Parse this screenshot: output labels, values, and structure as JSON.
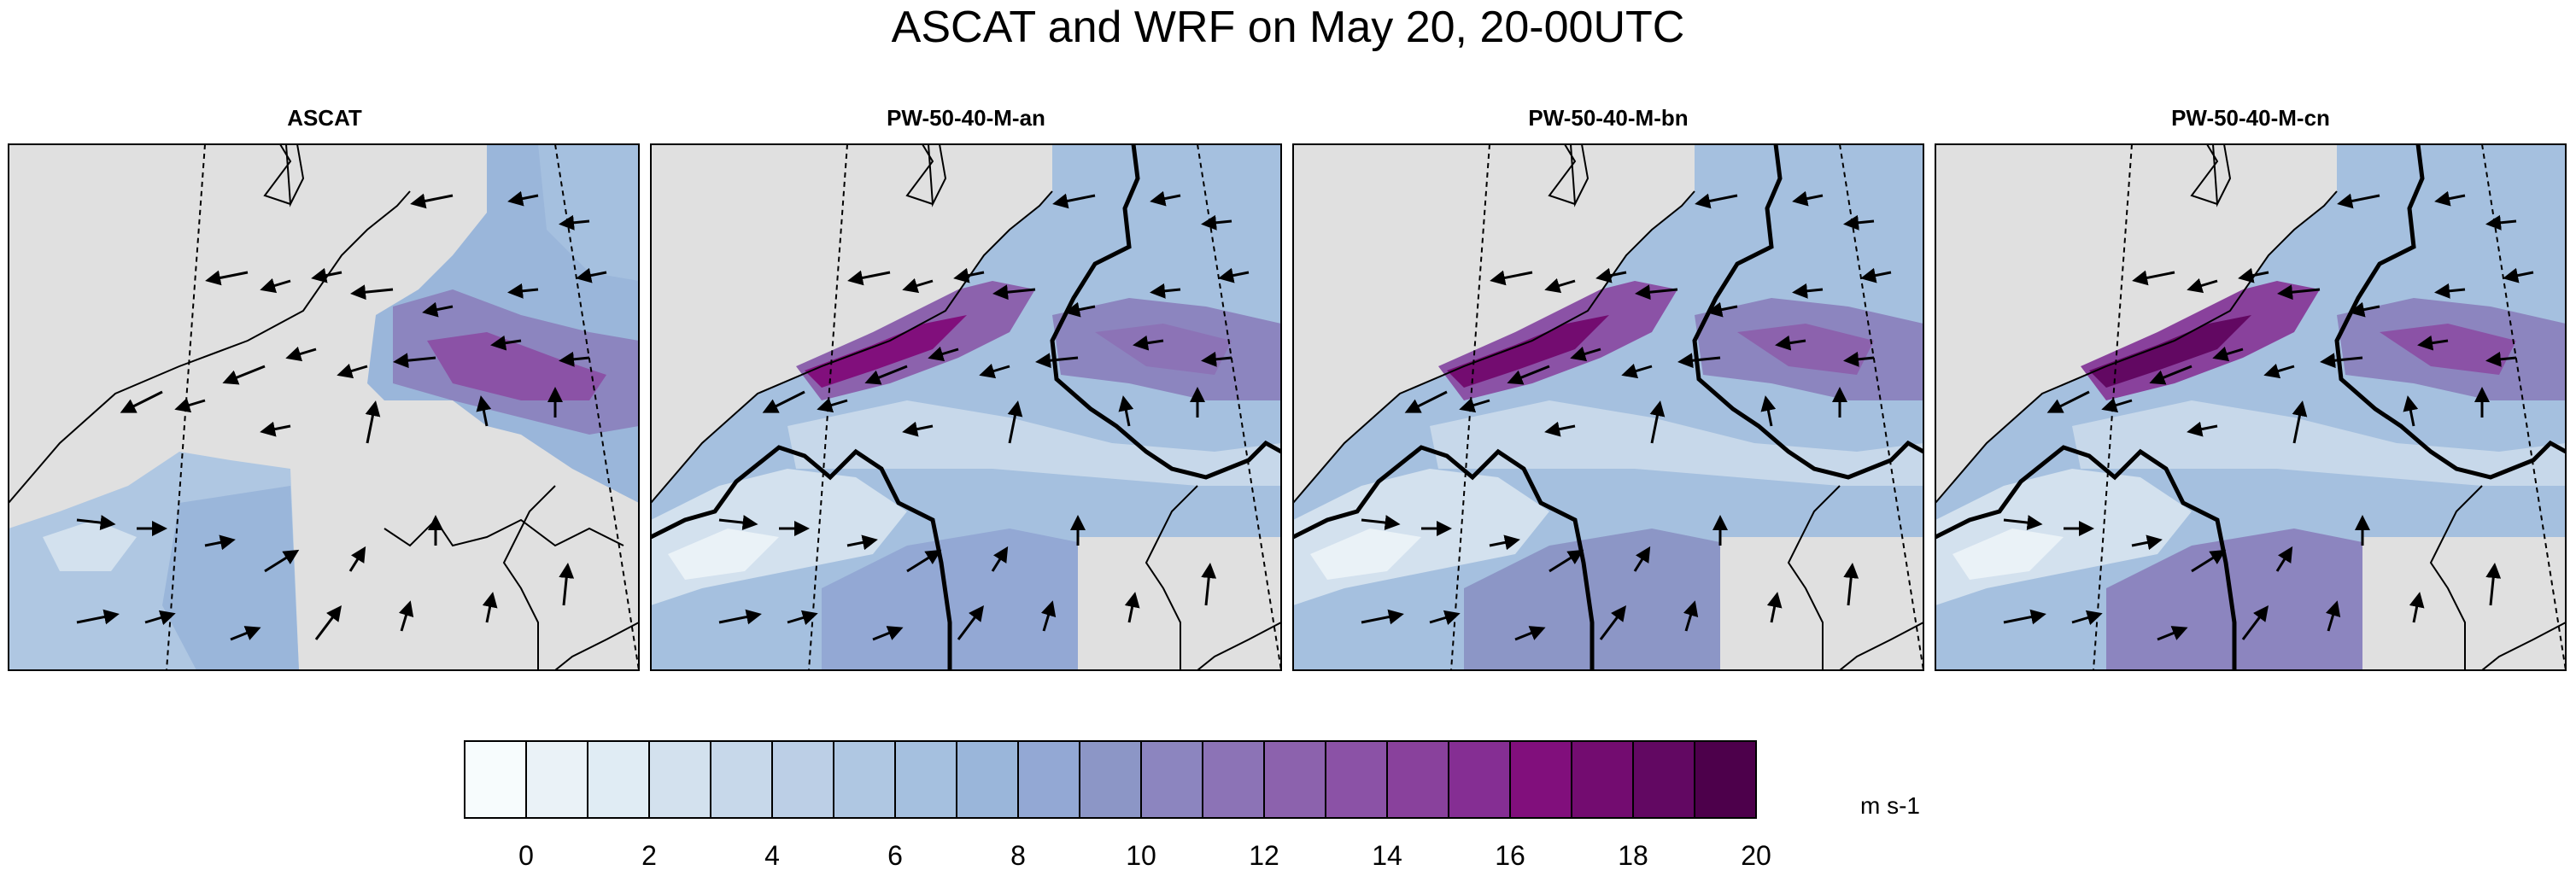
{
  "title": "ASCAT and WRF on May 20, 20-00UTC",
  "panels": [
    {
      "title": "ASCAT"
    },
    {
      "title": "PW-50-40-M-an"
    },
    {
      "title": "PW-50-40-M-bn"
    },
    {
      "title": "PW-50-40-M-cn"
    }
  ],
  "colorbar": {
    "units": "m s-1",
    "tick_labels": [
      "0",
      "2",
      "4",
      "6",
      "8",
      "10",
      "12",
      "14",
      "16",
      "18",
      "20"
    ],
    "colors": [
      "#f7fcfd",
      "#eaf2f7",
      "#e0ecf4",
      "#d3e1ee",
      "#c7d8ea",
      "#bccfe6",
      "#afc7e2",
      "#a5c0df",
      "#9ab6da",
      "#93a8d4",
      "#8c96c6",
      "#8c85bf",
      "#8c73b6",
      "#8c62ad",
      "#8b52a6",
      "#89419c",
      "#852e93",
      "#810f7c",
      "#730c70",
      "#620862",
      "#4d004b"
    ],
    "boundaries": [
      0,
      1,
      2,
      3,
      4,
      5,
      6,
      7,
      8,
      9,
      10,
      11,
      12,
      13,
      14,
      15,
      16,
      17,
      18,
      19,
      20,
      21
    ]
  },
  "map": {
    "land_color": "#e0e0e0"
  }
}
